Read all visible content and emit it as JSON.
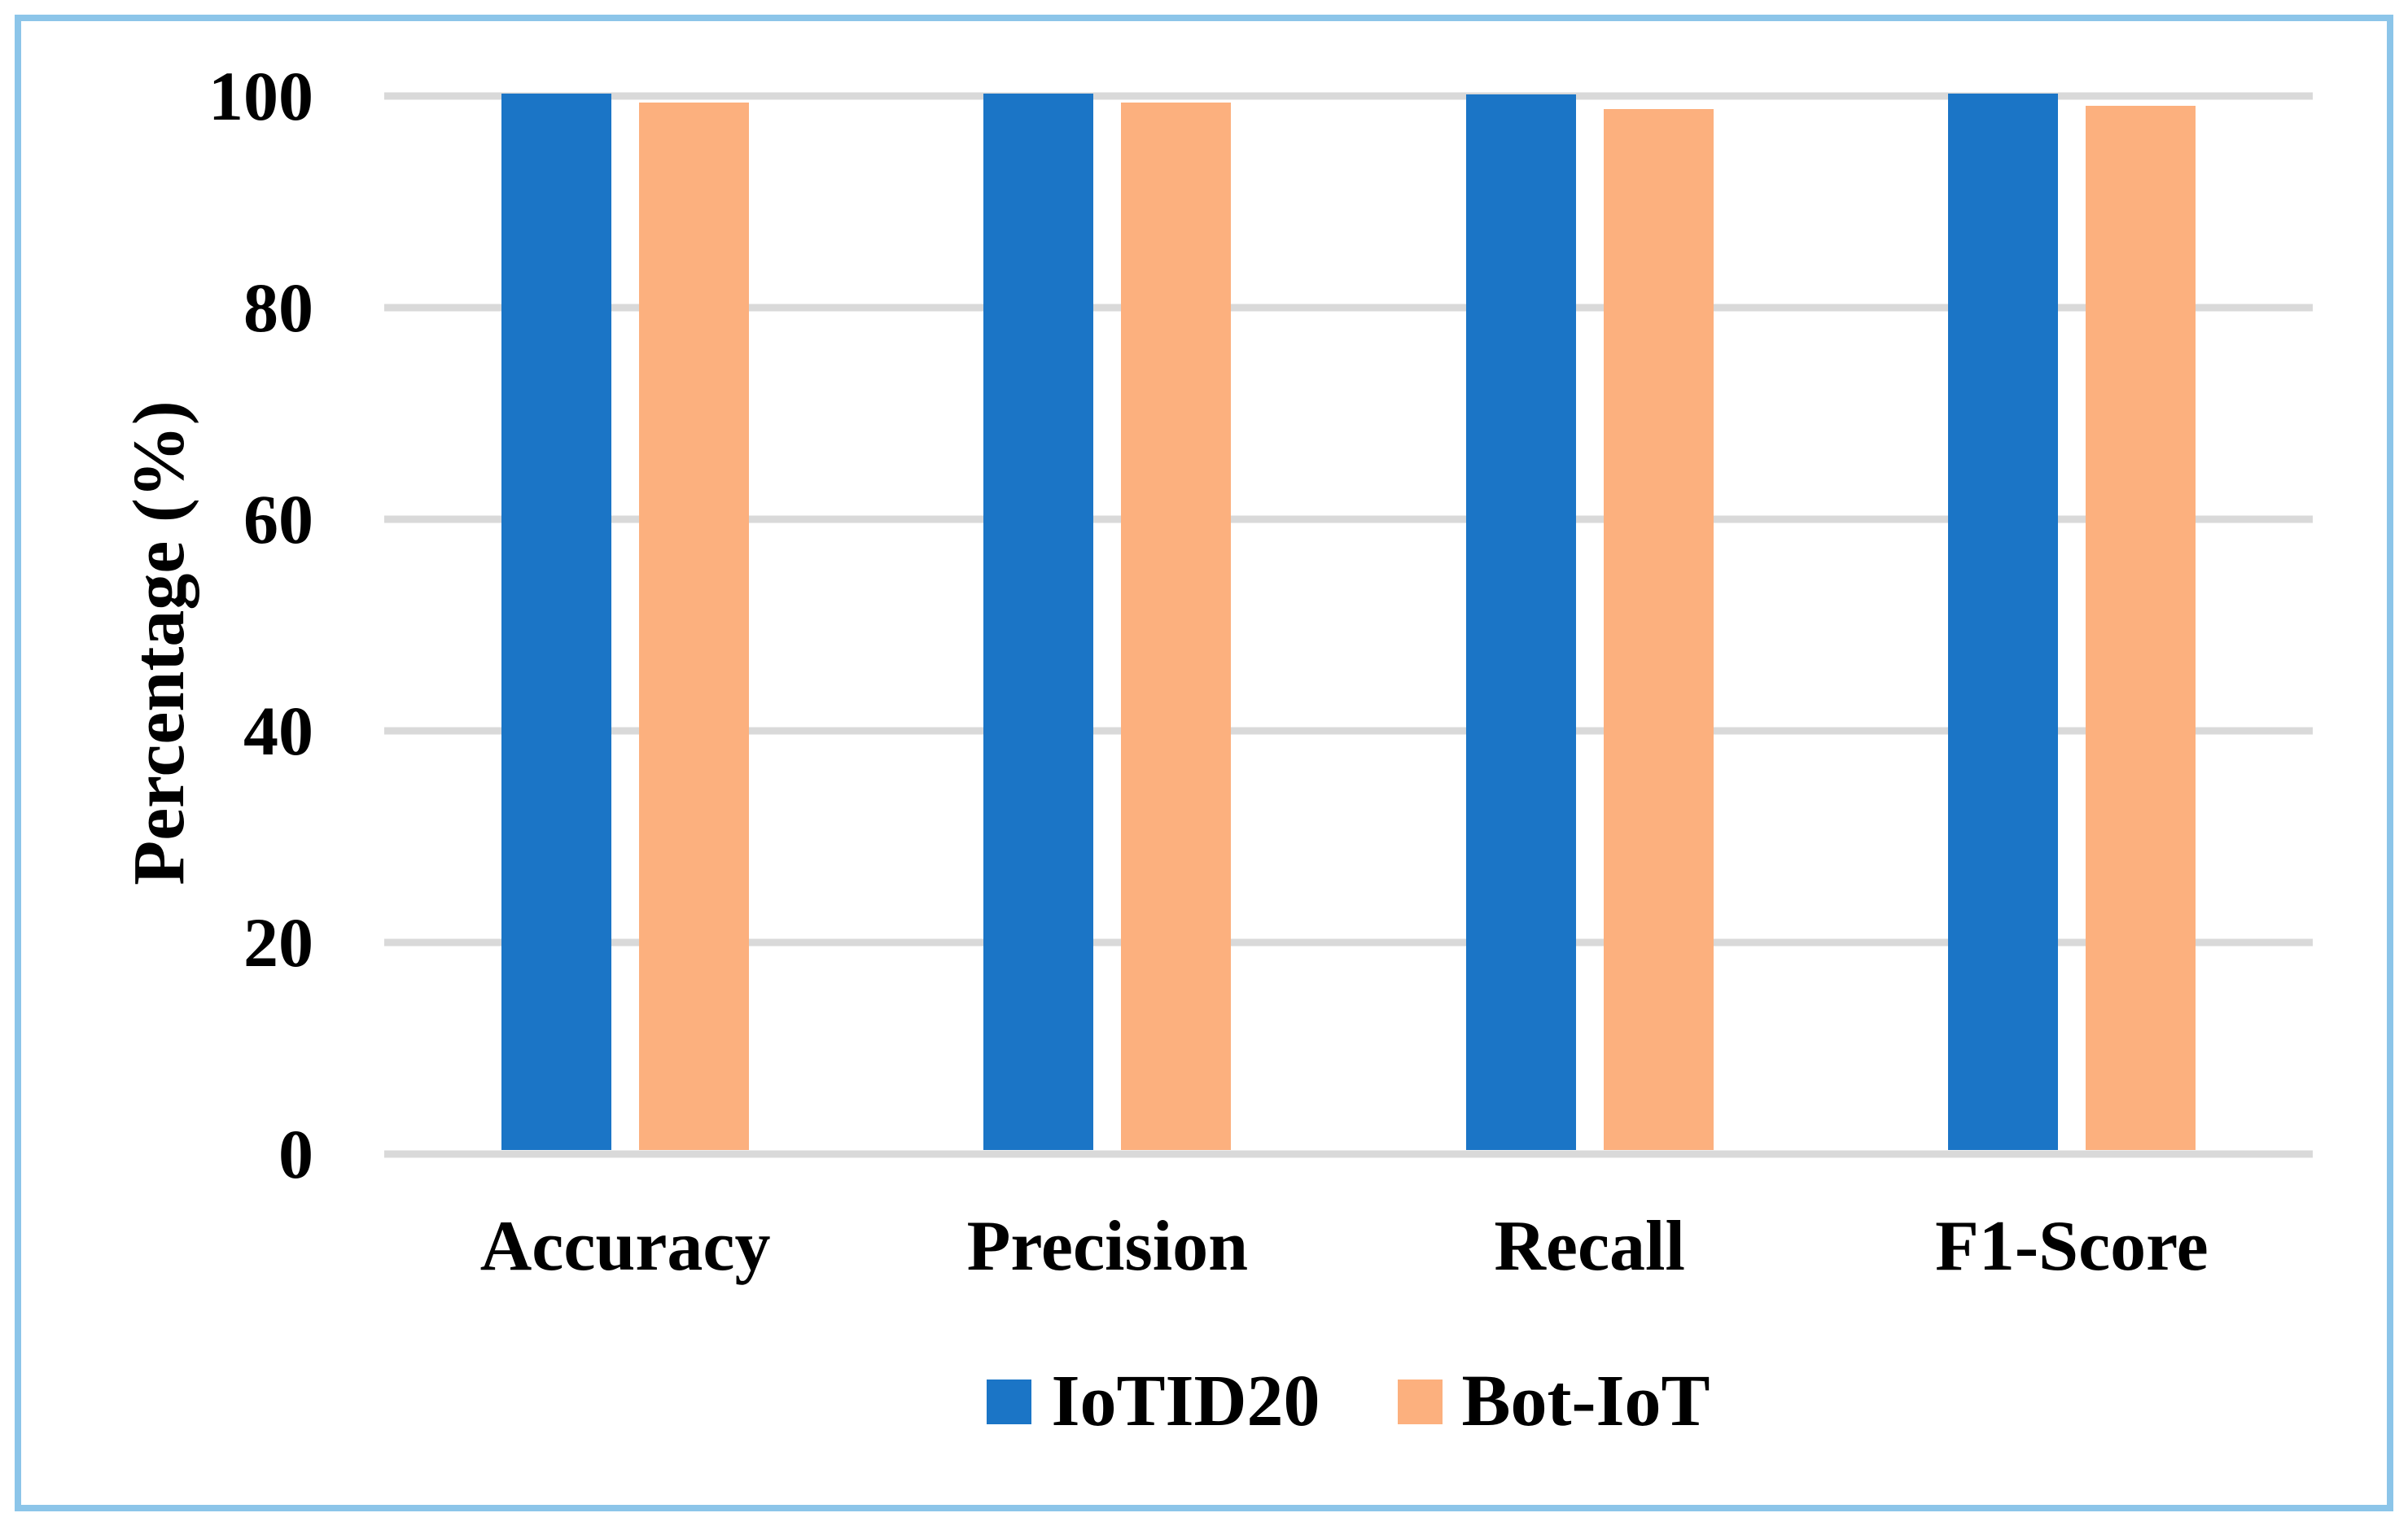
{
  "chart_data": {
    "type": "bar",
    "title": "",
    "categories": [
      "Accuracy",
      "Precision",
      "Recall",
      "F1-Score"
    ],
    "series": [
      {
        "name": "IoTID20",
        "color": "#1B75C6",
        "values": [
          99.9,
          99.9,
          99.8,
          99.9
        ]
      },
      {
        "name": "Bot-IoT",
        "color": "#FCB07E",
        "values": [
          99.0,
          99.0,
          98.4,
          98.7
        ]
      }
    ],
    "xlabel": "",
    "ylabel": "Percentage (%)",
    "ylim": [
      0,
      100
    ],
    "yticks": [
      0,
      20,
      40,
      60,
      80,
      100
    ],
    "grid": true,
    "gridline_color": "#D9D9D9",
    "legend_position": "bottom-center"
  },
  "styling": {
    "frame_border_color": "#8CC5E9",
    "background_color": "#FFFFFF",
    "text_color": "#000000"
  }
}
